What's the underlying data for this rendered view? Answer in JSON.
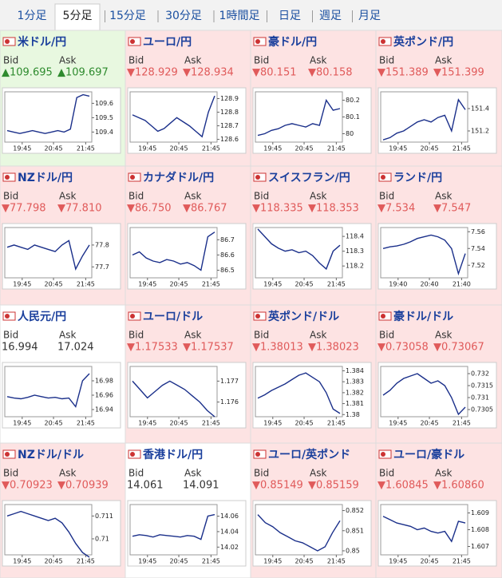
{
  "tabs": {
    "items": [
      "1分足",
      "5分足",
      "15分足",
      "30分足",
      "1時間足",
      "日足",
      "週足",
      "月足"
    ],
    "active": 1
  },
  "labels": {
    "bid": "Bid",
    "ask": "Ask"
  },
  "panels": [
    {
      "name": "米ドル/円",
      "trend": "up",
      "bid": "▲109.695",
      "ask": "▲109.697",
      "ylim": [
        109.33,
        109.68
      ],
      "yticks": [
        109.4,
        109.5,
        109.6
      ],
      "xticks": [
        "19:45",
        "20:45",
        "21:45"
      ],
      "values": [
        109.41,
        109.4,
        109.39,
        109.4,
        109.41,
        109.4,
        109.39,
        109.4,
        109.41,
        109.4,
        109.42,
        109.64,
        109.66,
        109.65
      ]
    },
    {
      "name": "ユーロ/円",
      "trend": "down",
      "bid": "▼128.929",
      "ask": "▼128.934",
      "ylim": [
        128.58,
        128.95
      ],
      "yticks": [
        128.6,
        128.7,
        128.8,
        128.9
      ],
      "xticks": [
        "19:45",
        "20:45",
        "21:45"
      ],
      "values": [
        128.78,
        128.76,
        128.74,
        128.7,
        128.66,
        128.68,
        128.72,
        128.76,
        128.73,
        128.7,
        128.66,
        128.62,
        128.8,
        128.92
      ]
    },
    {
      "name": "豪ドル/円",
      "trend": "down",
      "bid": "▼80.151",
      "ask": "▼80.158",
      "ylim": [
        79.95,
        80.25
      ],
      "yticks": [
        80,
        80.1,
        80.2
      ],
      "xticks": [
        "19:45",
        "20:45",
        "21:45"
      ],
      "values": [
        79.99,
        80.0,
        80.02,
        80.03,
        80.05,
        80.06,
        80.05,
        80.04,
        80.06,
        80.05,
        80.2,
        80.14,
        80.15
      ]
    },
    {
      "name": "英ポンド/円",
      "trend": "down",
      "bid": "▼151.389",
      "ask": "▼151.399",
      "ylim": [
        151.1,
        151.55
      ],
      "yticks": [
        151.2,
        151.4
      ],
      "xticks": [
        "19:45",
        "20:45",
        "21:45"
      ],
      "values": [
        151.12,
        151.14,
        151.18,
        151.2,
        151.24,
        151.28,
        151.3,
        151.28,
        151.32,
        151.34,
        151.2,
        151.48,
        151.39
      ]
    },
    {
      "name": "NZドル/円",
      "trend": "down",
      "bid": "▼77.798",
      "ask": "▼77.810",
      "ylim": [
        77.65,
        77.88
      ],
      "yticks": [
        77.7,
        77.8
      ],
      "xticks": [
        "19:45",
        "20:45",
        "21:45"
      ],
      "values": [
        77.79,
        77.8,
        77.79,
        77.78,
        77.8,
        77.79,
        77.78,
        77.77,
        77.8,
        77.82,
        77.69,
        77.75,
        77.8
      ]
    },
    {
      "name": "カナダドル/円",
      "trend": "down",
      "bid": "▼86.750",
      "ask": "▼86.767",
      "ylim": [
        86.45,
        86.78
      ],
      "yticks": [
        86.5,
        86.6,
        86.7
      ],
      "xticks": [
        "19:45",
        "20:45",
        "21:45"
      ],
      "values": [
        86.6,
        86.62,
        86.58,
        86.56,
        86.55,
        86.57,
        86.56,
        86.54,
        86.55,
        86.53,
        86.5,
        86.72,
        86.75
      ]
    },
    {
      "name": "スイスフラン/円",
      "trend": "down",
      "bid": "▼118.335",
      "ask": "▼118.353",
      "ylim": [
        118.12,
        118.46
      ],
      "yticks": [
        118.2,
        118.3,
        118.4
      ],
      "xticks": [
        "19:45",
        "20:45",
        "21:45"
      ],
      "values": [
        118.45,
        118.4,
        118.35,
        118.32,
        118.3,
        118.31,
        118.29,
        118.3,
        118.27,
        118.22,
        118.18,
        118.3,
        118.34
      ]
    },
    {
      "name": "ランド/円",
      "trend": "down",
      "bid": "▼7.534",
      "ask": "▼7.547",
      "ylim": [
        7.505,
        7.565
      ],
      "yticks": [
        7.52,
        7.54,
        7.56
      ],
      "xticks": [
        "19:40",
        "20:40",
        "21:40"
      ],
      "values": [
        7.54,
        7.542,
        7.543,
        7.545,
        7.548,
        7.552,
        7.554,
        7.556,
        7.554,
        7.55,
        7.54,
        7.51,
        7.534
      ]
    },
    {
      "name": "人民元/円",
      "trend": "none",
      "bid": "16.994",
      "ask": "17.024",
      "ylim": [
        16.93,
        17.0
      ],
      "yticks": [
        16.94,
        16.96,
        16.98
      ],
      "xticks": [
        "19:45",
        "20:45",
        "21:45"
      ],
      "values": [
        16.958,
        16.956,
        16.955,
        16.957,
        16.96,
        16.958,
        16.956,
        16.957,
        16.955,
        16.956,
        16.944,
        16.98,
        16.99
      ]
    },
    {
      "name": "ユーロ/ドル",
      "trend": "down",
      "bid": "▼1.17533",
      "ask": "▼1.17537",
      "ylim": [
        1.1753,
        1.1777
      ],
      "yticks": [
        1.176,
        1.177
      ],
      "xticks": [
        "19:45",
        "20:45",
        "21:45"
      ],
      "values": [
        1.177,
        1.1766,
        1.1762,
        1.1765,
        1.1768,
        1.177,
        1.1768,
        1.1766,
        1.1763,
        1.176,
        1.1756,
        1.1753
      ]
    },
    {
      "name": "英ポンド/ドル",
      "trend": "down",
      "bid": "▼1.38013",
      "ask": "▼1.38023",
      "ylim": [
        1.3798,
        1.3844
      ],
      "yticks": [
        1.38,
        1.381,
        1.382,
        1.383,
        1.384
      ],
      "xticks": [
        "19:45",
        "20:45",
        "21:45"
      ],
      "values": [
        1.3815,
        1.3818,
        1.3822,
        1.3825,
        1.3828,
        1.3832,
        1.3836,
        1.3838,
        1.3834,
        1.383,
        1.382,
        1.3805,
        1.3801
      ]
    },
    {
      "name": "豪ドル/ドル",
      "trend": "down",
      "bid": "▼0.73058",
      "ask": "▼0.73067",
      "ylim": [
        0.7302,
        0.7323
      ],
      "yticks": [
        0.7305,
        0.731,
        0.7315,
        0.732
      ],
      "xticks": [
        "19:45",
        "20:45",
        "21:45"
      ],
      "values": [
        0.7311,
        0.7313,
        0.7316,
        0.7318,
        0.7319,
        0.732,
        0.7318,
        0.7316,
        0.7317,
        0.7315,
        0.731,
        0.7303,
        0.7306
      ]
    },
    {
      "name": "NZドル/ドル",
      "trend": "down",
      "bid": "▼0.70923",
      "ask": "▼0.70939",
      "ylim": [
        0.7093,
        0.7115
      ],
      "yticks": [
        0.71,
        0.711
      ],
      "xticks": [
        "19:45",
        "20:45",
        "21:45"
      ],
      "values": [
        0.711,
        0.7111,
        0.7112,
        0.7111,
        0.711,
        0.7109,
        0.7108,
        0.7109,
        0.7107,
        0.7103,
        0.7098,
        0.7094,
        0.7092
      ]
    },
    {
      "name": "香港ドル/円",
      "trend": "none",
      "bid": "14.061",
      "ask": "14.091",
      "ylim": [
        14.01,
        14.075
      ],
      "yticks": [
        14.02,
        14.04,
        14.06
      ],
      "xticks": [
        "19:45",
        "20:45",
        "21:45"
      ],
      "values": [
        14.034,
        14.036,
        14.035,
        14.033,
        14.036,
        14.035,
        14.034,
        14.033,
        14.035,
        14.034,
        14.03,
        14.06,
        14.062
      ]
    },
    {
      "name": "ユーロ/英ポンド",
      "trend": "down",
      "bid": "▼0.85149",
      "ask": "▼0.85159",
      "ylim": [
        0.8498,
        0.8523
      ],
      "yticks": [
        0.85,
        0.851,
        0.852
      ],
      "xticks": [
        "19:45",
        "20:45",
        "21:45"
      ],
      "values": [
        0.8518,
        0.8514,
        0.8512,
        0.8509,
        0.8507,
        0.8505,
        0.8504,
        0.8502,
        0.85,
        0.8502,
        0.8509,
        0.8515
      ]
    },
    {
      "name": "ユーロ/豪ドル",
      "trend": "down",
      "bid": "▼1.60845",
      "ask": "▼1.60860",
      "ylim": [
        1.6065,
        1.6095
      ],
      "yticks": [
        1.607,
        1.608,
        1.609
      ],
      "xticks": [
        "19:45",
        "20:45",
        "21:45"
      ],
      "values": [
        1.6088,
        1.6086,
        1.6084,
        1.6083,
        1.6082,
        1.608,
        1.6081,
        1.6079,
        1.6078,
        1.6079,
        1.6073,
        1.6085,
        1.6084
      ]
    }
  ]
}
